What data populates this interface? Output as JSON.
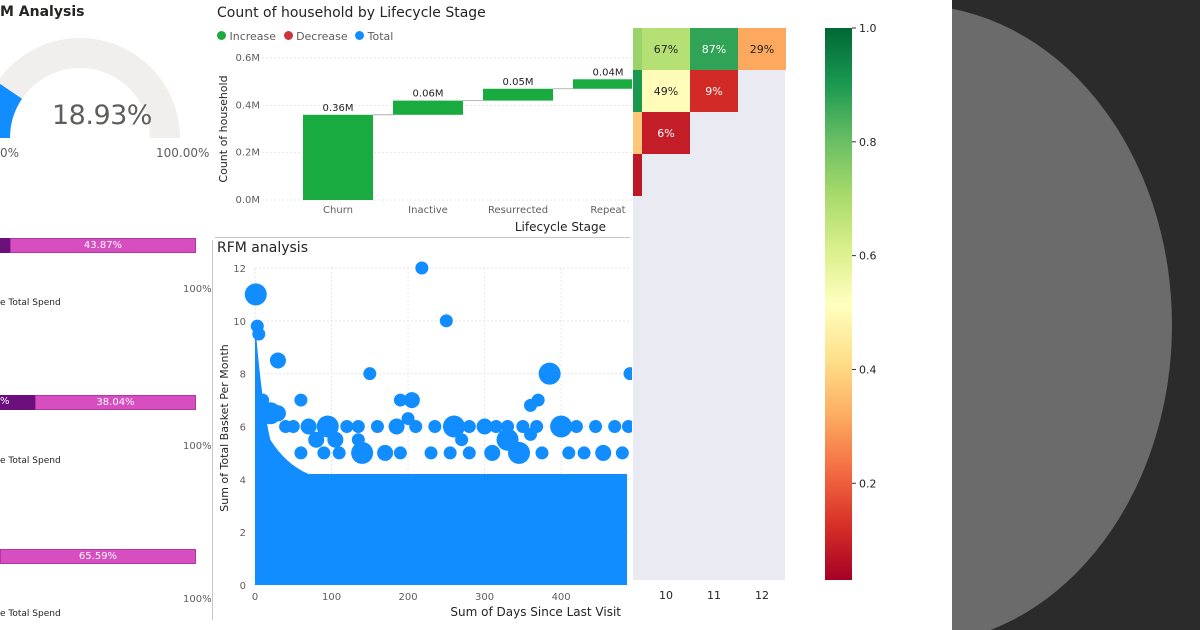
{
  "gauge": {
    "title": "M Analysis",
    "value_label": "18.93%",
    "value": 0.1893,
    "min_label": "0%",
    "max_label": "100.00%"
  },
  "bars": [
    {
      "value_label": "43.87%",
      "axis_label": "100%",
      "caption": "e Total Spend",
      "left_label": ""
    },
    {
      "value_label": "38.04%",
      "axis_label": "100%",
      "caption": "e Total Spend",
      "left_label": "%"
    },
    {
      "value_label": "65.59%",
      "axis_label": "100%",
      "caption": "e Total Spend",
      "left_label": ""
    }
  ],
  "colors": {
    "increase": "#1aab40",
    "decrease": "#d13438",
    "total": "#118dff",
    "pink": "#d64ebf",
    "purple": "#6a0f7c",
    "gauge_track": "#f0efed"
  },
  "chart_data": [
    {
      "type": "waterfall",
      "title": "Count of household by Lifecycle Stage",
      "legend": [
        "Increase",
        "Decrease",
        "Total"
      ],
      "categories": [
        "Churn",
        "Inactive",
        "Resurrected",
        "Repeat"
      ],
      "values": [
        0.36,
        0.06,
        0.05,
        0.04
      ],
      "value_labels": [
        "0.36M",
        "0.06M",
        "0.05M",
        "0.04M"
      ],
      "ylabel": "Count of household",
      "xlabel": "Lifecycle Stage",
      "yticks": [
        "0.0M",
        "0.2M",
        "0.4M",
        "0.6M"
      ],
      "ylim": [
        0,
        0.6
      ]
    },
    {
      "type": "scatter",
      "title": "RFM analysis",
      "xlabel": "Sum of Days Since Last Visit",
      "ylabel": "Sum of Total Basket Per Month",
      "xticks": [
        "0",
        "100",
        "200",
        "300",
        "400"
      ],
      "yticks": [
        "0",
        "2",
        "4",
        "6",
        "8",
        "10",
        "12"
      ],
      "xlim": [
        0,
        490
      ],
      "ylim": [
        0,
        12
      ],
      "dense_fill_top": 4.2,
      "points": [
        [
          1,
          11
        ],
        [
          218,
          12
        ],
        [
          250,
          10
        ],
        [
          3,
          9.8
        ],
        [
          5,
          9.5
        ],
        [
          30,
          8.5
        ],
        [
          150,
          8
        ],
        [
          385,
          8
        ],
        [
          490,
          8
        ],
        [
          190,
          7
        ],
        [
          205,
          7
        ],
        [
          370,
          7
        ],
        [
          360,
          6.8
        ],
        [
          10,
          7
        ],
        [
          20,
          6.5
        ],
        [
          30,
          6.5
        ],
        [
          60,
          7
        ],
        [
          200,
          6.3
        ],
        [
          40,
          6
        ],
        [
          50,
          6
        ],
        [
          70,
          6
        ],
        [
          95,
          6
        ],
        [
          120,
          6
        ],
        [
          135,
          6
        ],
        [
          160,
          6
        ],
        [
          185,
          6
        ],
        [
          210,
          6
        ],
        [
          235,
          6
        ],
        [
          260,
          6
        ],
        [
          280,
          6
        ],
        [
          300,
          6
        ],
        [
          315,
          6
        ],
        [
          330,
          6
        ],
        [
          350,
          6
        ],
        [
          368,
          6
        ],
        [
          400,
          6
        ],
        [
          420,
          6
        ],
        [
          445,
          6
        ],
        [
          470,
          6
        ],
        [
          488,
          6
        ],
        [
          105,
          5.5
        ],
        [
          135,
          5.5
        ],
        [
          330,
          5.5
        ],
        [
          360,
          5.7
        ],
        [
          270,
          5.5
        ],
        [
          80,
          5.5
        ],
        [
          60,
          5
        ],
        [
          90,
          5
        ],
        [
          110,
          5
        ],
        [
          140,
          5
        ],
        [
          170,
          5
        ],
        [
          190,
          5
        ],
        [
          230,
          5
        ],
        [
          255,
          5
        ],
        [
          280,
          5
        ],
        [
          310,
          5
        ],
        [
          345,
          5
        ],
        [
          375,
          5
        ],
        [
          410,
          5
        ],
        [
          430,
          5
        ],
        [
          455,
          5
        ],
        [
          480,
          5
        ]
      ]
    },
    {
      "type": "heatmap",
      "xticks": [
        "10",
        "11",
        "12"
      ],
      "rows": [
        [
          "67%",
          "87%",
          "29%"
        ],
        [
          "49%",
          "9%",
          ""
        ],
        [
          "6%",
          "",
          ""
        ]
      ],
      "values": [
        [
          0.67,
          0.87,
          0.29
        ],
        [
          0.49,
          0.09,
          null
        ],
        [
          0.06,
          null,
          null
        ]
      ],
      "partial_left_values": [
        0.72,
        0.9,
        0.35,
        0.05
      ],
      "colorbar_ticks": [
        "1.0",
        "0.8",
        "0.6",
        "0.4",
        "0.2"
      ],
      "colorbar_range": [
        0.03,
        1.0
      ]
    }
  ]
}
